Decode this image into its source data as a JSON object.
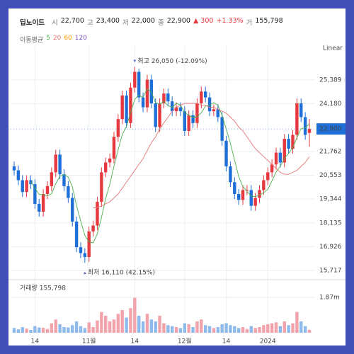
{
  "header": {
    "name": "딥노이드",
    "fields": [
      {
        "label": "시",
        "value": "22,700"
      },
      {
        "label": "고",
        "value": "23,400"
      },
      {
        "label": "저",
        "value": "22,000"
      },
      {
        "label": "종",
        "value": "22,900"
      }
    ],
    "change": "▲ 300",
    "change_pct": "+1.33%",
    "volume_field": {
      "label": "거",
      "value": "155,798"
    }
  },
  "chart_data": {
    "type": "candlestick",
    "scale_label": "Linear",
    "moving_average": {
      "label": "이동평균",
      "periods": [
        {
          "name": "5",
          "color": "#4caf50",
          "values": [
            null,
            null,
            null,
            null,
            20240,
            19900,
            19580,
            19560,
            19500,
            19620,
            20120,
            20500,
            20580,
            20460,
            19960,
            19020,
            18220,
            17500,
            17160,
            17120,
            17580,
            18400,
            19360,
            20100,
            21000,
            21840,
            22620,
            23020,
            23740,
            24400,
            24620,
            24500,
            24940,
            24780,
            24220,
            24160,
            24300,
            24080,
            24000,
            24200,
            24120,
            23740,
            23600,
            23480,
            23520,
            23720,
            24060,
            24100,
            24240,
            24100,
            23600,
            22900,
            22180,
            21320,
            20480,
            19980,
            19740,
            19500,
            19460,
            19560,
            19660,
            19840,
            20260,
            20720,
            21000,
            21420,
            21660,
            21960,
            22460,
            22920,
            22960,
            23160
          ]
        },
        {
          "name": "20",
          "color": "#e57373",
          "values": [
            null,
            null,
            null,
            null,
            null,
            null,
            null,
            null,
            null,
            null,
            null,
            null,
            null,
            null,
            null,
            null,
            null,
            null,
            null,
            18900,
            18900,
            19000,
            19100,
            19200,
            19400,
            19600,
            19900,
            20200,
            20500,
            20800,
            21100,
            21400,
            21800,
            22200,
            22500,
            22900,
            23200,
            23500,
            23800,
            24000,
            24100,
            24200,
            24200,
            24200,
            24200,
            24100,
            24100,
            24000,
            24000,
            23900,
            23800,
            23700,
            23500,
            23300,
            23000,
            22800,
            22500,
            22200,
            21900,
            21700,
            21500,
            21300,
            21100,
            20900,
            20700,
            20600,
            20600,
            20700,
            20800,
            21000,
            21200,
            21500
          ]
        },
        {
          "name": "60",
          "color": "#ff9800"
        },
        {
          "name": "120",
          "color": "#7e57c2"
        }
      ]
    },
    "categories": [
      null,
      null,
      null,
      null,
      null,
      "14",
      null,
      null,
      null,
      null,
      null,
      null,
      null,
      null,
      null,
      null,
      null,
      null,
      "11월",
      null,
      null,
      null,
      null,
      null,
      null,
      null,
      null,
      null,
      null,
      "14",
      null,
      null,
      null,
      null,
      null,
      null,
      null,
      null,
      null,
      null,
      null,
      "12월",
      null,
      null,
      null,
      null,
      null,
      null,
      null,
      null,
      null,
      "14",
      null,
      null,
      null,
      null,
      null,
      null,
      null,
      null,
      null,
      "2024",
      null,
      null,
      null,
      null,
      null,
      null,
      null,
      null,
      null,
      null
    ],
    "open": [
      21000,
      20800,
      20300,
      19700,
      20300,
      20100,
      19100,
      18700,
      19600,
      20000,
      20700,
      21600,
      20600,
      20000,
      19400,
      18200,
      16900,
      16600,
      16400,
      17700,
      18000,
      19200,
      20700,
      21200,
      21400,
      22500,
      23400,
      24600,
      23200,
      25000,
      25800,
      24500,
      24000,
      25400,
      24200,
      23000,
      24200,
      24700,
      24300,
      23800,
      24000,
      23800,
      22800,
      23600,
      23200,
      24200,
      24800,
      24500,
      23800,
      23900,
      23500,
      22300,
      21000,
      20200,
      19600,
      19300,
      19800,
      19800,
      19000,
      19400,
      19800,
      20300,
      20700,
      21100,
      21700,
      21200,
      22400,
      21900,
      22600,
      24200,
      23500,
      22700
    ],
    "high": [
      21250,
      21050,
      20550,
      20550,
      20550,
      20350,
      19350,
      19850,
      20250,
      20950,
      21850,
      21850,
      20850,
      20250,
      19650,
      18450,
      17150,
      16850,
      17950,
      18250,
      19450,
      20950,
      21450,
      21650,
      22750,
      23650,
      24850,
      24850,
      25250,
      26050,
      25950,
      24750,
      25650,
      25650,
      24450,
      24450,
      24950,
      24950,
      24550,
      24250,
      24250,
      24050,
      23850,
      23850,
      24450,
      25050,
      25050,
      24750,
      24150,
      24150,
      23750,
      22550,
      21250,
      20450,
      19850,
      20050,
      20050,
      20050,
      19650,
      20050,
      20550,
      20950,
      21350,
      21950,
      21950,
      22650,
      22650,
      22850,
      24450,
      24450,
      23750,
      23400
    ],
    "low": [
      20550,
      20050,
      19450,
      19450,
      19850,
      18850,
      18450,
      18450,
      19350,
      19750,
      20450,
      20350,
      19750,
      19150,
      17950,
      16650,
      16350,
      16110,
      16150,
      17450,
      17750,
      18950,
      20450,
      20950,
      21150,
      22250,
      23150,
      22950,
      22950,
      24750,
      24250,
      23750,
      23750,
      23950,
      22750,
      22750,
      23950,
      24050,
      23550,
      23550,
      23550,
      22550,
      22550,
      22950,
      22950,
      23950,
      24250,
      23550,
      23550,
      23250,
      22050,
      20750,
      19950,
      19350,
      19050,
      19050,
      19550,
      18750,
      18750,
      19150,
      19550,
      20050,
      20450,
      20850,
      20950,
      20950,
      21650,
      21650,
      22350,
      23250,
      22350,
      22000
    ],
    "close": [
      20800,
      20300,
      19700,
      20300,
      20100,
      19100,
      18700,
      19600,
      20000,
      20700,
      21600,
      20600,
      20000,
      19400,
      18200,
      16900,
      16600,
      16400,
      17700,
      18000,
      19200,
      20700,
      21200,
      21400,
      22500,
      23400,
      24600,
      23200,
      25000,
      25800,
      24500,
      24000,
      25400,
      24200,
      23000,
      24200,
      24700,
      24300,
      23800,
      24000,
      23800,
      22800,
      23600,
      23200,
      24200,
      24800,
      24500,
      23800,
      23900,
      23500,
      22300,
      21000,
      20200,
      19600,
      19300,
      19800,
      19800,
      19000,
      19400,
      19800,
      20300,
      20700,
      21100,
      21700,
      21200,
      22400,
      21900,
      22600,
      24200,
      23500,
      22600,
      22900
    ],
    "volume": [
      250000,
      180000,
      300000,
      220000,
      150000,
      350000,
      280000,
      260000,
      200000,
      500000,
      700000,
      450000,
      300000,
      280000,
      400000,
      600000,
      350000,
      250000,
      550000,
      300000,
      650000,
      1100000,
      900000,
      600000,
      700000,
      1000000,
      1200000,
      800000,
      1300000,
      1850000,
      900000,
      600000,
      1000000,
      700000,
      600000,
      900000,
      500000,
      400000,
      350000,
      300000,
      250000,
      500000,
      450000,
      300000,
      600000,
      700000,
      400000,
      350000,
      250000,
      300000,
      450000,
      500000,
      400000,
      350000,
      250000,
      300000,
      200000,
      350000,
      250000,
      300000,
      400000,
      450000,
      500000,
      550000,
      350000,
      600000,
      400000,
      500000,
      1100000,
      600000,
      350000,
      155798
    ],
    "up_color": "#e5393f",
    "down_color": "#1f6fd8",
    "volume_up_color": "#f2a3ab",
    "volume_down_color": "#8fbaec",
    "ylim": [
      15360,
      27110
    ],
    "yticks": [
      {
        "value": 15717,
        "label": "15,717"
      },
      {
        "value": 16926,
        "label": "16,926"
      },
      {
        "value": 18135,
        "label": "18,135"
      },
      {
        "value": 19344,
        "label": "19,344"
      },
      {
        "value": 20553,
        "label": "20,553"
      },
      {
        "value": 21762,
        "label": "21,762"
      },
      {
        "value": 24180,
        "label": "24,180"
      },
      {
        "value": 25389,
        "label": "25,389"
      }
    ],
    "current_price": {
      "value": 22900,
      "label": "22,900"
    },
    "volume_title": "거래량 155,798",
    "vlim": [
      0,
      2618000
    ],
    "vticks": [
      {
        "value": 1870000,
        "label": "1.87m"
      }
    ],
    "annotations": [
      {
        "index": 29,
        "field": "high",
        "text": "최고 26,050 (-12.09%)"
      },
      {
        "index": 17,
        "field": "low",
        "text": "최저 16,110 (42.15%)"
      }
    ],
    "grid": true
  }
}
